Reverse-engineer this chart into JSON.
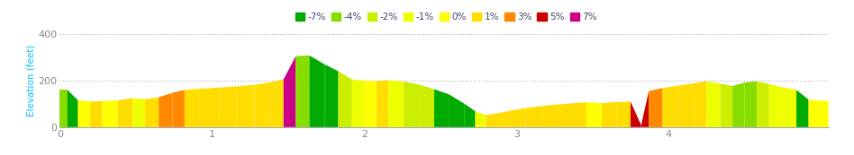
{
  "ylabel": "Elevation (feet)",
  "xlim": [
    0,
    5.05
  ],
  "ylim": [
    0,
    400
  ],
  "yticks": [
    0,
    200,
    400
  ],
  "xticks": [
    0,
    1,
    2,
    3,
    4
  ],
  "bg_color": "#ffffff",
  "grid_color": "#b0b0b0",
  "ylabel_color": "#00bfff",
  "tick_color": "#888888",
  "legend_items": [
    {
      "label": "-7%",
      "color": "#00aa00"
    },
    {
      "label": "-4%",
      "color": "#88dd00"
    },
    {
      "label": "-2%",
      "color": "#ccee00"
    },
    {
      "label": "-1%",
      "color": "#eeff00"
    },
    {
      "label": "0%",
      "color": "#ffff00"
    },
    {
      "label": "1%",
      "color": "#ffdd00"
    },
    {
      "label": "3%",
      "color": "#ff8800"
    },
    {
      "label": "5%",
      "color": "#cc0000"
    },
    {
      "label": "7%",
      "color": "#cc0088"
    }
  ],
  "segments": [
    {
      "x": [
        0.0,
        0.05
      ],
      "y": [
        160,
        160
      ],
      "color": "#88dd00"
    },
    {
      "x": [
        0.05,
        0.12
      ],
      "y": [
        160,
        115
      ],
      "color": "#00aa00"
    },
    {
      "x": [
        0.12,
        0.2
      ],
      "y": [
        115,
        110
      ],
      "color": "#ffff00"
    },
    {
      "x": [
        0.2,
        0.28
      ],
      "y": [
        110,
        112
      ],
      "color": "#ffdd00"
    },
    {
      "x": [
        0.28,
        0.38
      ],
      "y": [
        112,
        115
      ],
      "color": "#ffff00"
    },
    {
      "x": [
        0.38,
        0.48
      ],
      "y": [
        115,
        125
      ],
      "color": "#ffdd00"
    },
    {
      "x": [
        0.48,
        0.56
      ],
      "y": [
        125,
        120
      ],
      "color": "#eeff00"
    },
    {
      "x": [
        0.56,
        0.65
      ],
      "y": [
        120,
        128
      ],
      "color": "#ffdd00"
    },
    {
      "x": [
        0.65,
        0.74
      ],
      "y": [
        128,
        148
      ],
      "color": "#ff8800"
    },
    {
      "x": [
        0.74,
        0.82
      ],
      "y": [
        148,
        160
      ],
      "color": "#ff8800"
    },
    {
      "x": [
        0.82,
        0.92
      ],
      "y": [
        160,
        165
      ],
      "color": "#ffdd00"
    },
    {
      "x": [
        0.92,
        1.05
      ],
      "y": [
        165,
        170
      ],
      "color": "#ffdd00"
    },
    {
      "x": [
        1.05,
        1.16
      ],
      "y": [
        170,
        175
      ],
      "color": "#ffdd00"
    },
    {
      "x": [
        1.16,
        1.28
      ],
      "y": [
        175,
        182
      ],
      "color": "#ffdd00"
    },
    {
      "x": [
        1.28,
        1.38
      ],
      "y": [
        182,
        192
      ],
      "color": "#ffdd00"
    },
    {
      "x": [
        1.38,
        1.47
      ],
      "y": [
        192,
        205
      ],
      "color": "#ffdd00"
    },
    {
      "x": [
        1.47,
        1.55
      ],
      "y": [
        205,
        305
      ],
      "color": "#cc0088"
    },
    {
      "x": [
        1.55,
        1.64
      ],
      "y": [
        305,
        308
      ],
      "color": "#88dd00"
    },
    {
      "x": [
        1.64,
        1.74
      ],
      "y": [
        308,
        270
      ],
      "color": "#00aa00"
    },
    {
      "x": [
        1.74,
        1.83
      ],
      "y": [
        270,
        240
      ],
      "color": "#00aa00"
    },
    {
      "x": [
        1.83,
        1.92
      ],
      "y": [
        240,
        205
      ],
      "color": "#ccee00"
    },
    {
      "x": [
        1.92,
        2.0
      ],
      "y": [
        205,
        200
      ],
      "color": "#eeff00"
    },
    {
      "x": [
        2.0,
        2.08
      ],
      "y": [
        200,
        198
      ],
      "color": "#ffff00"
    },
    {
      "x": [
        2.08,
        2.16
      ],
      "y": [
        198,
        202
      ],
      "color": "#ffdd00"
    },
    {
      "x": [
        2.16,
        2.26
      ],
      "y": [
        202,
        196
      ],
      "color": "#eeff00"
    },
    {
      "x": [
        2.26,
        2.36
      ],
      "y": [
        196,
        183
      ],
      "color": "#ccee00"
    },
    {
      "x": [
        2.36,
        2.46
      ],
      "y": [
        183,
        163
      ],
      "color": "#ccee00"
    },
    {
      "x": [
        2.46,
        2.56
      ],
      "y": [
        163,
        140
      ],
      "color": "#00aa00"
    },
    {
      "x": [
        2.56,
        2.66
      ],
      "y": [
        140,
        100
      ],
      "color": "#00aa00"
    },
    {
      "x": [
        2.66,
        2.73
      ],
      "y": [
        100,
        68
      ],
      "color": "#00aa00"
    },
    {
      "x": [
        2.73,
        2.8
      ],
      "y": [
        68,
        52
      ],
      "color": "#eeff00"
    },
    {
      "x": [
        2.8,
        2.88
      ],
      "y": [
        52,
        60
      ],
      "color": "#ffdd00"
    },
    {
      "x": [
        2.88,
        2.97
      ],
      "y": [
        60,
        72
      ],
      "color": "#ffdd00"
    },
    {
      "x": [
        2.97,
        3.06
      ],
      "y": [
        72,
        82
      ],
      "color": "#ffdd00"
    },
    {
      "x": [
        3.06,
        3.16
      ],
      "y": [
        82,
        90
      ],
      "color": "#ffdd00"
    },
    {
      "x": [
        3.16,
        3.26
      ],
      "y": [
        90,
        97
      ],
      "color": "#ffdd00"
    },
    {
      "x": [
        3.26,
        3.36
      ],
      "y": [
        97,
        102
      ],
      "color": "#ffdd00"
    },
    {
      "x": [
        3.36,
        3.46
      ],
      "y": [
        102,
        107
      ],
      "color": "#ffdd00"
    },
    {
      "x": [
        3.46,
        3.56
      ],
      "y": [
        107,
        103
      ],
      "color": "#ffff00"
    },
    {
      "x": [
        3.56,
        3.66
      ],
      "y": [
        103,
        108
      ],
      "color": "#ffdd00"
    },
    {
      "x": [
        3.66,
        3.75
      ],
      "y": [
        108,
        110
      ],
      "color": "#ffdd00"
    },
    {
      "x": [
        3.75,
        3.82
      ],
      "y": [
        110,
        8
      ],
      "color": "#cc0000"
    },
    {
      "x": [
        3.82,
        3.87
      ],
      "y": [
        8,
        155
      ],
      "color": "#cc0000"
    },
    {
      "x": [
        3.87,
        3.96
      ],
      "y": [
        155,
        168
      ],
      "color": "#ff8800"
    },
    {
      "x": [
        3.96,
        4.06
      ],
      "y": [
        168,
        178
      ],
      "color": "#ffdd00"
    },
    {
      "x": [
        4.06,
        4.16
      ],
      "y": [
        178,
        188
      ],
      "color": "#ffdd00"
    },
    {
      "x": [
        4.16,
        4.25
      ],
      "y": [
        188,
        197
      ],
      "color": "#ffdd00"
    },
    {
      "x": [
        4.25,
        4.34
      ],
      "y": [
        197,
        187
      ],
      "color": "#eeff00"
    },
    {
      "x": [
        4.34,
        4.42
      ],
      "y": [
        187,
        177
      ],
      "color": "#ccee00"
    },
    {
      "x": [
        4.42,
        4.5
      ],
      "y": [
        177,
        192
      ],
      "color": "#88dd00"
    },
    {
      "x": [
        4.5,
        4.58
      ],
      "y": [
        192,
        197
      ],
      "color": "#88dd00"
    },
    {
      "x": [
        4.58,
        4.66
      ],
      "y": [
        197,
        185
      ],
      "color": "#ccee00"
    },
    {
      "x": [
        4.66,
        4.75
      ],
      "y": [
        185,
        172
      ],
      "color": "#eeff00"
    },
    {
      "x": [
        4.75,
        4.84
      ],
      "y": [
        172,
        160
      ],
      "color": "#eeff00"
    },
    {
      "x": [
        4.84,
        4.92
      ],
      "y": [
        160,
        118
      ],
      "color": "#00aa00"
    },
    {
      "x": [
        4.92,
        5.05
      ],
      "y": [
        118,
        112
      ],
      "color": "#ffff00"
    }
  ]
}
